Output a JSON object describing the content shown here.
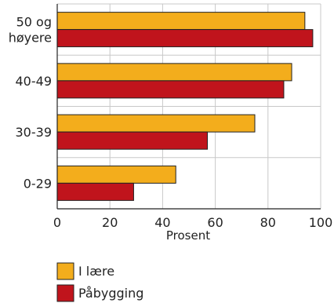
{
  "chart_data": {
    "type": "bar",
    "orientation": "horizontal",
    "categories": [
      [
        "50 og",
        "høyere"
      ],
      [
        "40-49"
      ],
      [
        "30-39"
      ],
      [
        "0-29"
      ]
    ],
    "series": [
      {
        "name": "I lære",
        "color": "#f3ad1c",
        "values": [
          94,
          89,
          75,
          45
        ]
      },
      {
        "name": "Påbygging",
        "color": "#c0141c",
        "values": [
          97,
          86,
          57,
          29
        ]
      }
    ],
    "xlabel": "Prosent",
    "xlim": [
      0,
      100
    ],
    "xticks": [
      0,
      20,
      40,
      60,
      80,
      100
    ],
    "grid": true,
    "legend_placement": "bottom-left"
  }
}
